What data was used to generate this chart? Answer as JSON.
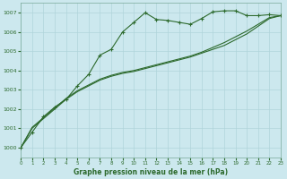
{
  "title": "Graphe pression niveau de la mer (hPa)",
  "bg_color": "#cce8ee",
  "grid_color": "#b0d4da",
  "line_color": "#2d6a2d",
  "marker_color": "#2d6a2d",
  "xlim": [
    0,
    23
  ],
  "ylim": [
    999.5,
    1007.5
  ],
  "yticks": [
    1000,
    1001,
    1002,
    1003,
    1004,
    1005,
    1006,
    1007
  ],
  "xticks": [
    0,
    1,
    2,
    3,
    4,
    5,
    6,
    7,
    8,
    9,
    10,
    11,
    12,
    13,
    14,
    15,
    16,
    17,
    18,
    19,
    20,
    21,
    22,
    23
  ],
  "series1_x": [
    0,
    1,
    2,
    3,
    4,
    5,
    6,
    7,
    8,
    9,
    10,
    11,
    12,
    13,
    14,
    15,
    16,
    17,
    18,
    19,
    20,
    21,
    22,
    23
  ],
  "series1_y": [
    1000.0,
    1000.8,
    1001.6,
    1002.1,
    1002.5,
    1003.2,
    1003.8,
    1004.8,
    1005.1,
    1006.0,
    1006.5,
    1007.0,
    1006.65,
    1006.6,
    1006.5,
    1006.4,
    1006.7,
    1007.05,
    1007.1,
    1007.1,
    1006.85,
    1006.85,
    1006.9,
    1006.85
  ],
  "series2_x": [
    0,
    1,
    2,
    3,
    4,
    5,
    6,
    7,
    8,
    9,
    10,
    11,
    12,
    13,
    14,
    15,
    16,
    17,
    18,
    19,
    20,
    21,
    22,
    23
  ],
  "series2_y": [
    1000.0,
    1001.0,
    1001.5,
    1002.0,
    1002.5,
    1002.9,
    1003.2,
    1003.5,
    1003.7,
    1003.85,
    1003.95,
    1004.1,
    1004.25,
    1004.4,
    1004.55,
    1004.7,
    1004.9,
    1005.1,
    1005.3,
    1005.6,
    1005.9,
    1006.3,
    1006.7,
    1006.85
  ],
  "series3_x": [
    0,
    1,
    2,
    3,
    4,
    5,
    6,
    7,
    8,
    9,
    10,
    11,
    12,
    13,
    14,
    15,
    16,
    17,
    18,
    19,
    20,
    21,
    22,
    23
  ],
  "series3_y": [
    1000.0,
    1001.05,
    1001.55,
    1002.05,
    1002.55,
    1002.95,
    1003.25,
    1003.55,
    1003.75,
    1003.9,
    1004.0,
    1004.15,
    1004.3,
    1004.45,
    1004.6,
    1004.75,
    1004.95,
    1005.2,
    1005.45,
    1005.75,
    1006.05,
    1006.4,
    1006.75,
    1006.85
  ]
}
